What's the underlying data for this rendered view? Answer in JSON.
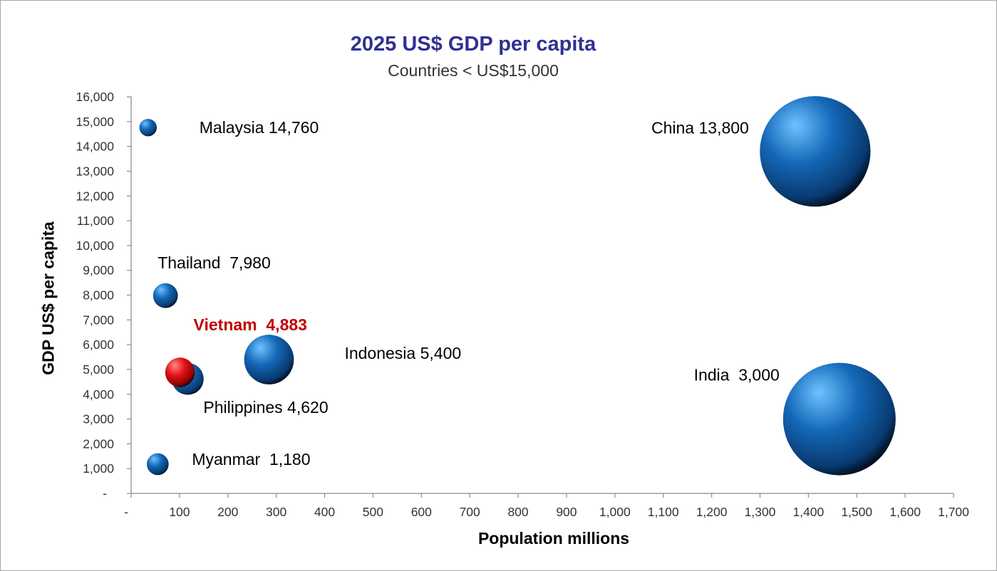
{
  "chart_data": {
    "type": "bubble",
    "title": "2025 US$ GDP per capita",
    "subtitle": "Countries < US$15,000",
    "xlabel": "Population millions",
    "ylabel": "GDP US$ per capita",
    "xlim": [
      0,
      1700
    ],
    "ylim": [
      0,
      16000
    ],
    "x_ticks": [
      "-",
      "100",
      "200",
      "300",
      "400",
      "500",
      "600",
      "700",
      "800",
      "900",
      "1,000",
      "1,100",
      "1,200",
      "1,300",
      "1,400",
      "1,500",
      "1,600",
      "1,700"
    ],
    "y_ticks": [
      "-",
      "1,000",
      "2,000",
      "3,000",
      "4,000",
      "5,000",
      "6,000",
      "7,000",
      "8,000",
      "9,000",
      "10,000",
      "11,000",
      "12,000",
      "13,000",
      "14,000",
      "15,000",
      "16,000"
    ],
    "grid": false,
    "points": [
      {
        "label": "Malaysia 14,760",
        "x": 35,
        "y": 14760,
        "size": 35,
        "color": "#1f6fb5"
      },
      {
        "label": "China 13,800",
        "x": 1414,
        "y": 13800,
        "size": 1414,
        "color": "#1f6fb5"
      },
      {
        "label": "Thailand  7,980",
        "x": 71,
        "y": 7980,
        "size": 71,
        "color": "#1f6fb5"
      },
      {
        "label": "Vietnam  4,883",
        "x": 101,
        "y": 4883,
        "size": 101,
        "color": "#e01010",
        "highlight": true
      },
      {
        "label": "Indonesia 5,400",
        "x": 285,
        "y": 5400,
        "size": 285,
        "color": "#1f6fb5"
      },
      {
        "label": "Philippines 4,620",
        "x": 117,
        "y": 4620,
        "size": 117,
        "color": "#1f6fb5"
      },
      {
        "label": "India  3,000",
        "x": 1464,
        "y": 3000,
        "size": 1464,
        "color": "#1f6fb5"
      },
      {
        "label": "Myanmar  1,180",
        "x": 55,
        "y": 1180,
        "size": 55,
        "color": "#1f6fb5"
      }
    ],
    "label_color_highlight": "#c00000"
  }
}
